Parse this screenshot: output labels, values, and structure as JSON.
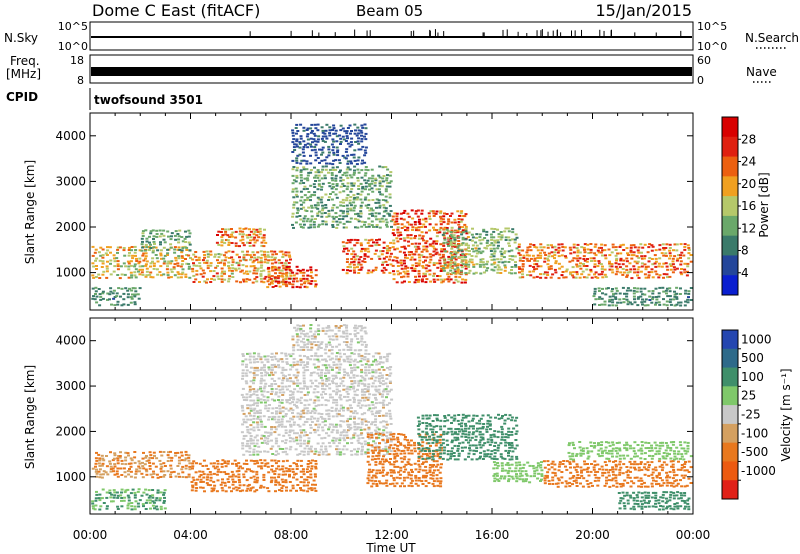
{
  "header": {
    "station": "Dome C East (fitACF)",
    "beam": "Beam 05",
    "date": "15/Jan/2015"
  },
  "status_panels": {
    "nsky_label": "N.Sky",
    "nsearch_label": "N.Search",
    "freq_label_line1": "Freq.",
    "freq_label_line2": "[MHz]",
    "nave_label": "Nave",
    "cpid_label": "CPID",
    "cpid_value": "twofsound 3501",
    "nsky_ticks": [
      "10^5",
      "10^0"
    ],
    "nsearch_ticks": [
      "10^5",
      "10^0"
    ],
    "freq_ticks": [
      "18",
      "8"
    ],
    "nave_ticks": [
      "60",
      "0"
    ]
  },
  "colors": {
    "power_scale": [
      "#0a1fd0",
      "#24469a",
      "#3a7a6a",
      "#6aa86a",
      "#b5c86a",
      "#f0a020",
      "#ec6010",
      "#e02010",
      "#d80000"
    ],
    "velocity_scale": [
      "#2446b0",
      "#2e6a8a",
      "#3f8f6a",
      "#7fc86a",
      "#c8c8c8",
      "#d4a060",
      "#e8781e",
      "#ec5a10",
      "#e02018"
    ]
  },
  "chart_data": [
    {
      "type": "heatmap",
      "name": "power",
      "ylabel": "Slant Range [km]",
      "y_ticks": [
        "1000",
        "2000",
        "3000",
        "4000"
      ],
      "ylim": [
        180,
        4500
      ],
      "x_ticks": [
        "00:00",
        "04:00",
        "08:00",
        "12:00",
        "16:00",
        "20:00",
        "00:00"
      ],
      "colorbar": {
        "label": "Power [dB]",
        "ticks": [
          "28",
          "24",
          "20",
          "16",
          "12",
          "8",
          "4"
        ],
        "range": [
          0,
          32
        ]
      },
      "regions": [
        {
          "t": [
            0.0,
            4.0
          ],
          "range": [
            900,
            1600
          ],
          "value": 18
        },
        {
          "t": [
            0.0,
            2.0
          ],
          "range": [
            300,
            700
          ],
          "value": 10
        },
        {
          "t": [
            2.0,
            4.0
          ],
          "range": [
            1500,
            2000
          ],
          "value": 12
        },
        {
          "t": [
            4.0,
            8.0
          ],
          "range": [
            800,
            1500
          ],
          "value": 20
        },
        {
          "t": [
            5.0,
            7.0
          ],
          "range": [
            1600,
            2000
          ],
          "value": 22
        },
        {
          "t": [
            7.0,
            9.0
          ],
          "range": [
            700,
            1200
          ],
          "value": 26
        },
        {
          "t": [
            8.0,
            12.0
          ],
          "range": [
            2000,
            3400
          ],
          "value": 12
        },
        {
          "t": [
            8.0,
            11.0
          ],
          "range": [
            3400,
            4300
          ],
          "value": 6
        },
        {
          "t": [
            10.0,
            12.0
          ],
          "range": [
            1000,
            1800
          ],
          "value": 24
        },
        {
          "t": [
            12.0,
            15.0
          ],
          "range": [
            800,
            2400
          ],
          "value": 24
        },
        {
          "t": [
            14.0,
            17.0
          ],
          "range": [
            1000,
            2000
          ],
          "value": 14
        },
        {
          "t": [
            17.0,
            24.0
          ],
          "range": [
            900,
            1700
          ],
          "value": 22
        },
        {
          "t": [
            20.0,
            24.0
          ],
          "range": [
            300,
            700
          ],
          "value": 10
        }
      ]
    },
    {
      "type": "heatmap",
      "name": "velocity",
      "ylabel": "Slant Range [km]",
      "y_ticks": [
        "1000",
        "2000",
        "3000",
        "4000"
      ],
      "ylim": [
        180,
        4500
      ],
      "x_ticks": [
        "00:00",
        "04:00",
        "08:00",
        "12:00",
        "16:00",
        "20:00",
        "00:00"
      ],
      "xlabel": "Time UT",
      "colorbar": {
        "label": "Velocity [m s⁻¹]",
        "ticks": [
          "1000",
          "500",
          "100",
          "25",
          "-25",
          "-100",
          "-500",
          "-1000"
        ]
      },
      "regions": [
        {
          "t": [
            0.0,
            3.0
          ],
          "range": [
            300,
            800
          ],
          "value": 100
        },
        {
          "t": [
            0.0,
            4.0
          ],
          "range": [
            1000,
            1600
          ],
          "value": -100
        },
        {
          "t": [
            4.0,
            9.0
          ],
          "range": [
            700,
            1400
          ],
          "value": -300
        },
        {
          "t": [
            6.0,
            12.0
          ],
          "range": [
            1500,
            3800
          ],
          "value": 0
        },
        {
          "t": [
            8.0,
            11.0
          ],
          "range": [
            3800,
            4400
          ],
          "value": 0
        },
        {
          "t": [
            11.0,
            14.0
          ],
          "range": [
            800,
            2000
          ],
          "value": -200
        },
        {
          "t": [
            13.0,
            17.0
          ],
          "range": [
            1400,
            2400
          ],
          "value": 300
        },
        {
          "t": [
            16.0,
            18.0
          ],
          "range": [
            900,
            1400
          ],
          "value": 60
        },
        {
          "t": [
            18.0,
            24.0
          ],
          "range": [
            800,
            1400
          ],
          "value": -150
        },
        {
          "t": [
            19.0,
            24.0
          ],
          "range": [
            1400,
            1800
          ],
          "value": 50
        },
        {
          "t": [
            21.0,
            24.0
          ],
          "range": [
            300,
            700
          ],
          "value": 150
        }
      ]
    }
  ]
}
